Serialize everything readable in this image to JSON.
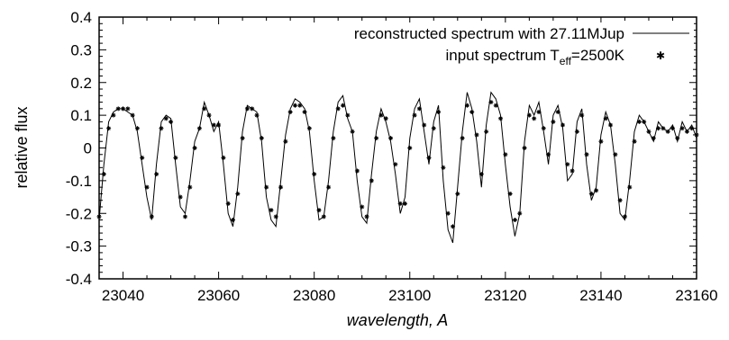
{
  "chart_data": {
    "type": "line",
    "xlabel": "wavelength, A",
    "ylabel": "relative flux",
    "xlim": [
      23035,
      23160
    ],
    "ylim": [
      -0.4,
      0.4
    ],
    "xticks": [
      "23040",
      "23060",
      "23080",
      "23100",
      "23120",
      "23140",
      "23160"
    ],
    "yticks": [
      "-0.4",
      "-0.3",
      "-0.2",
      "-0.1",
      "0",
      "0.1",
      "0.2",
      "0.3",
      "0.4"
    ],
    "xtick_values": [
      23040,
      23060,
      23080,
      23100,
      23120,
      23140,
      23160
    ],
    "ytick_values": [
      -0.4,
      -0.3,
      -0.2,
      -0.1,
      0,
      0.1,
      0.2,
      0.3,
      0.4
    ],
    "grid": false,
    "legend_position": "top-right",
    "legend": {
      "line_label": "reconstructed spectrum with 27.11MJup",
      "points_label_main": "input spectrum T",
      "points_label_sub": "eff",
      "points_label_tail": "=2500K"
    },
    "series": [
      {
        "name": "reconstructed spectrum with 27.11MJup",
        "style": "line",
        "x": [
          23035,
          23036,
          23037,
          23038,
          23039,
          23040,
          23041,
          23042,
          23043,
          23044,
          23045,
          23046,
          23047,
          23048,
          23049,
          23050,
          23051,
          23052,
          23053,
          23054,
          23055,
          23056,
          23057,
          23058,
          23059,
          23060,
          23061,
          23062,
          23063,
          23064,
          23065,
          23066,
          23067,
          23068,
          23069,
          23070,
          23071,
          23072,
          23073,
          23074,
          23075,
          23076,
          23077,
          23078,
          23079,
          23080,
          23081,
          23082,
          23083,
          23084,
          23085,
          23086,
          23087,
          23088,
          23089,
          23090,
          23091,
          23092,
          23093,
          23094,
          23095,
          23096,
          23097,
          23098,
          23099,
          23100,
          23101,
          23102,
          23103,
          23104,
          23105,
          23106,
          23107,
          23108,
          23109,
          23110,
          23111,
          23112,
          23113,
          23114,
          23115,
          23116,
          23117,
          23118,
          23119,
          23120,
          23121,
          23122,
          23123,
          23124,
          23125,
          23126,
          23127,
          23128,
          23129,
          23130,
          23131,
          23132,
          23133,
          23134,
          23135,
          23136,
          23137,
          23138,
          23139,
          23140,
          23141,
          23142,
          23143,
          23144,
          23145,
          23146,
          23147,
          23148,
          23149,
          23150,
          23151,
          23152,
          23153,
          23154,
          23155,
          23156,
          23157,
          23158,
          23159,
          23160
        ],
        "values": [
          -0.22,
          -0.05,
          0.08,
          0.11,
          0.12,
          0.12,
          0.11,
          0.1,
          0.05,
          -0.05,
          -0.15,
          -0.22,
          -0.05,
          0.08,
          0.1,
          0.09,
          -0.05,
          -0.18,
          -0.2,
          -0.1,
          0.02,
          0.06,
          0.14,
          0.1,
          0.05,
          0.08,
          -0.05,
          -0.2,
          -0.24,
          -0.12,
          0.05,
          0.13,
          0.12,
          0.11,
          0.02,
          -0.15,
          -0.22,
          -0.24,
          -0.1,
          0.04,
          0.12,
          0.15,
          0.14,
          0.12,
          0.05,
          -0.1,
          -0.22,
          -0.21,
          -0.1,
          0.05,
          0.14,
          0.16,
          0.09,
          0.05,
          -0.1,
          -0.21,
          -0.23,
          -0.08,
          0.05,
          0.12,
          0.08,
          0.02,
          -0.08,
          -0.2,
          -0.15,
          0.03,
          0.12,
          0.15,
          0.05,
          -0.05,
          0.08,
          0.13,
          -0.1,
          -0.25,
          -0.29,
          -0.12,
          0.05,
          0.17,
          0.12,
          0.02,
          -0.12,
          0.07,
          0.17,
          0.15,
          0.1,
          -0.05,
          -0.18,
          -0.27,
          -0.2,
          0.02,
          0.13,
          0.1,
          0.14,
          0.05,
          -0.05,
          0.1,
          0.13,
          0.06,
          -0.1,
          -0.08,
          0.08,
          0.12,
          -0.05,
          -0.16,
          -0.12,
          0.04,
          0.11,
          0.07,
          -0.05,
          -0.2,
          -0.22,
          -0.1,
          0.05,
          0.1,
          0.08,
          0.05,
          0.02,
          0.08,
          0.06,
          0.05,
          0.07,
          0.02,
          0.08,
          0.05,
          0.07,
          0.03
        ]
      },
      {
        "name": "input spectrum T_eff=2500K",
        "style": "points",
        "x": [
          23035,
          23036,
          23037,
          23038,
          23039,
          23040,
          23041,
          23042,
          23043,
          23044,
          23045,
          23046,
          23047,
          23048,
          23049,
          23050,
          23051,
          23052,
          23053,
          23054,
          23055,
          23056,
          23057,
          23058,
          23059,
          23060,
          23061,
          23062,
          23063,
          23064,
          23065,
          23066,
          23067,
          23068,
          23069,
          23070,
          23071,
          23072,
          23073,
          23074,
          23075,
          23076,
          23077,
          23078,
          23079,
          23080,
          23081,
          23082,
          23083,
          23084,
          23085,
          23086,
          23087,
          23088,
          23089,
          23090,
          23091,
          23092,
          23093,
          23094,
          23095,
          23096,
          23097,
          23098,
          23099,
          23100,
          23101,
          23102,
          23103,
          23104,
          23105,
          23106,
          23107,
          23108,
          23109,
          23110,
          23111,
          23112,
          23113,
          23114,
          23115,
          23116,
          23117,
          23118,
          23119,
          23120,
          23121,
          23122,
          23123,
          23124,
          23125,
          23126,
          23127,
          23128,
          23129,
          23130,
          23131,
          23132,
          23133,
          23134,
          23135,
          23136,
          23137,
          23138,
          23139,
          23140,
          23141,
          23142,
          23143,
          23144,
          23145,
          23146,
          23147,
          23148,
          23149,
          23150,
          23151,
          23152,
          23153,
          23154,
          23155,
          23156,
          23157,
          23158,
          23159,
          23160
        ],
        "values": [
          -0.21,
          -0.08,
          0.06,
          0.1,
          0.12,
          0.12,
          0.12,
          0.1,
          0.06,
          -0.03,
          -0.12,
          -0.21,
          -0.08,
          0.06,
          0.09,
          0.08,
          -0.03,
          -0.15,
          -0.21,
          -0.12,
          0.0,
          0.06,
          0.12,
          0.1,
          0.07,
          0.07,
          -0.03,
          -0.17,
          -0.22,
          -0.14,
          0.03,
          0.12,
          0.12,
          0.1,
          0.03,
          -0.12,
          -0.19,
          -0.21,
          -0.12,
          0.02,
          0.11,
          0.13,
          0.13,
          0.11,
          0.06,
          -0.08,
          -0.19,
          -0.21,
          -0.12,
          0.03,
          0.12,
          0.13,
          0.1,
          0.05,
          -0.07,
          -0.18,
          -0.21,
          -0.1,
          0.03,
          0.1,
          0.09,
          0.03,
          -0.05,
          -0.17,
          -0.17,
          0.0,
          0.1,
          0.12,
          0.07,
          -0.03,
          0.06,
          0.11,
          -0.06,
          -0.2,
          -0.24,
          -0.14,
          0.03,
          0.13,
          0.11,
          0.04,
          -0.08,
          0.05,
          0.14,
          0.13,
          0.09,
          -0.02,
          -0.14,
          -0.22,
          -0.2,
          0.0,
          0.1,
          0.09,
          0.11,
          0.06,
          -0.02,
          0.08,
          0.11,
          0.07,
          -0.05,
          -0.07,
          0.05,
          0.1,
          -0.02,
          -0.14,
          -0.13,
          0.02,
          0.09,
          0.07,
          -0.02,
          -0.16,
          -0.21,
          -0.12,
          0.02,
          0.08,
          0.08,
          0.05,
          0.03,
          0.06,
          0.06,
          0.05,
          0.06,
          0.03,
          0.06,
          0.05,
          0.06,
          0.04
        ]
      }
    ]
  }
}
